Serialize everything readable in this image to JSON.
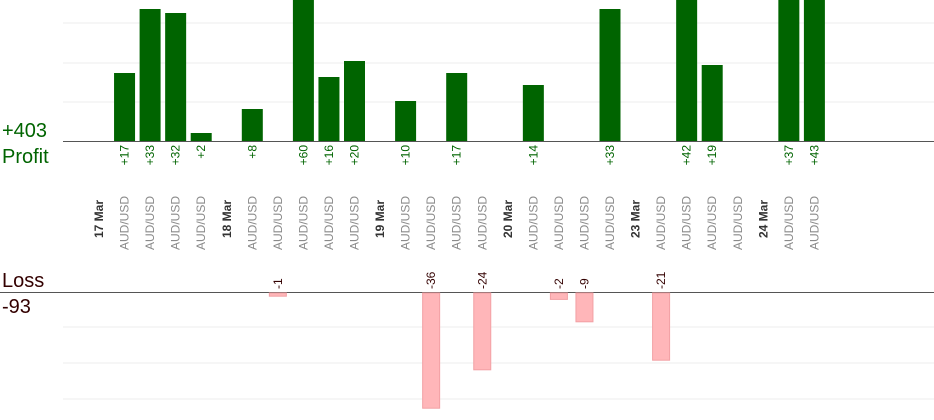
{
  "summary": {
    "profit_total": "+403",
    "profit_label": "Profit",
    "loss_label": "Loss",
    "loss_total": "-93"
  },
  "colors": {
    "profit_bar": "#006400",
    "profit_text": "#006400",
    "loss_bar": "#ffb6b9",
    "loss_text": "#330000",
    "pair_text": "#8a8a8a",
    "date_text": "#333333",
    "grid": "#eeeeee",
    "axis": "#555555"
  },
  "chart_data": {
    "type": "bar",
    "columns": [
      {
        "kind": "date",
        "label": "17 Mar"
      },
      {
        "kind": "trade",
        "pair": "AUD/USD",
        "value": 17,
        "label": "+17"
      },
      {
        "kind": "trade",
        "pair": "AUD/USD",
        "value": 33,
        "label": "+33"
      },
      {
        "kind": "trade",
        "pair": "AUD/USD",
        "value": 32,
        "label": "+32"
      },
      {
        "kind": "trade",
        "pair": "AUD/USD",
        "value": 2,
        "label": "+2"
      },
      {
        "kind": "date",
        "label": "18 Mar"
      },
      {
        "kind": "trade",
        "pair": "AUD/USD",
        "value": 8,
        "label": "+8"
      },
      {
        "kind": "trade",
        "pair": "AUD/USD",
        "value": -1,
        "label": "-1"
      },
      {
        "kind": "trade",
        "pair": "AUD/USD",
        "value": 60,
        "label": "+60"
      },
      {
        "kind": "trade",
        "pair": "AUD/USD",
        "value": 16,
        "label": "+16"
      },
      {
        "kind": "trade",
        "pair": "AUD/USD",
        "value": 20,
        "label": "+20"
      },
      {
        "kind": "date",
        "label": "19 Mar"
      },
      {
        "kind": "trade",
        "pair": "AUD/USD",
        "value": 10,
        "label": "+10"
      },
      {
        "kind": "trade",
        "pair": "AUD/USD",
        "value": -36,
        "label": "-36"
      },
      {
        "kind": "trade",
        "pair": "AUD/USD",
        "value": 17,
        "label": "+17"
      },
      {
        "kind": "trade",
        "pair": "AUD/USD",
        "value": -24,
        "label": "-24"
      },
      {
        "kind": "date",
        "label": "20 Mar"
      },
      {
        "kind": "trade",
        "pair": "AUD/USD",
        "value": 14,
        "label": "+14"
      },
      {
        "kind": "trade",
        "pair": "AUD/USD",
        "value": -2,
        "label": "-2"
      },
      {
        "kind": "trade",
        "pair": "AUD/USD",
        "value": -9,
        "label": "-9"
      },
      {
        "kind": "trade",
        "pair": "AUD/USD",
        "value": 33,
        "label": "+33"
      },
      {
        "kind": "date",
        "label": "23 Mar"
      },
      {
        "kind": "trade",
        "pair": "AUD/USD",
        "value": -21,
        "label": "-21"
      },
      {
        "kind": "trade",
        "pair": "AUD/USD",
        "value": 42,
        "label": "+42"
      },
      {
        "kind": "trade",
        "pair": "AUD/USD",
        "value": 19,
        "label": "+19"
      },
      {
        "kind": "trade",
        "pair": "AUD/USD",
        "value": null,
        "label": ""
      },
      {
        "kind": "date",
        "label": "24 Mar"
      },
      {
        "kind": "trade",
        "pair": "AUD/USD",
        "value": 37,
        "label": "+37"
      },
      {
        "kind": "trade",
        "pair": "AUD/USD",
        "value": 43,
        "label": "+43"
      }
    ],
    "profit_axis_max": 33,
    "loss_axis_max": 36,
    "grid": true
  }
}
